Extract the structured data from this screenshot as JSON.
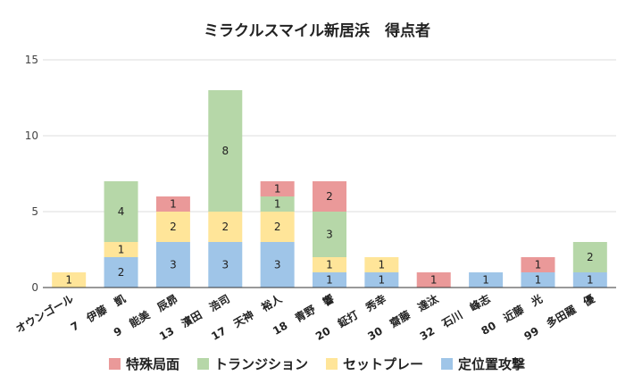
{
  "chart_data": {
    "type": "bar",
    "stacked": true,
    "title": "ミラクルスマイル新居浜　得点者",
    "xlabel": "",
    "ylabel": "",
    "ylim": [
      0,
      15
    ],
    "yticks": [
      0,
      5,
      10,
      15
    ],
    "grid": true,
    "legend_position": "bottom",
    "categories": [
      "オウンゴール",
      "7　伊藤　凱",
      "9　能美　辰昴",
      "13　濱田　浩司",
      "17　天神　裕人",
      "18　青野　響",
      "20　鉦打　秀幸",
      "30　齋藤　達汰",
      "32　石川　峰志",
      "80　近藤　光",
      "99　多田羅　優"
    ],
    "series": [
      {
        "name": "定位置攻撃",
        "color": "#9fc5e8",
        "values": [
          0,
          2,
          3,
          3,
          3,
          1,
          1,
          0,
          1,
          1,
          1
        ]
      },
      {
        "name": "セットプレー",
        "color": "#ffe599",
        "values": [
          1,
          1,
          2,
          2,
          2,
          1,
          1,
          0,
          0,
          0,
          0
        ]
      },
      {
        "name": "トランジション",
        "color": "#b6d7a8",
        "values": [
          0,
          4,
          0,
          8,
          1,
          3,
          0,
          0,
          0,
          0,
          2
        ]
      },
      {
        "name": "特殊局面",
        "color": "#ea9999",
        "values": [
          0,
          0,
          1,
          0,
          1,
          2,
          0,
          1,
          0,
          1,
          0
        ]
      }
    ],
    "legend_order": [
      "特殊局面",
      "トランジション",
      "セットプレー",
      "定位置攻撃"
    ]
  }
}
